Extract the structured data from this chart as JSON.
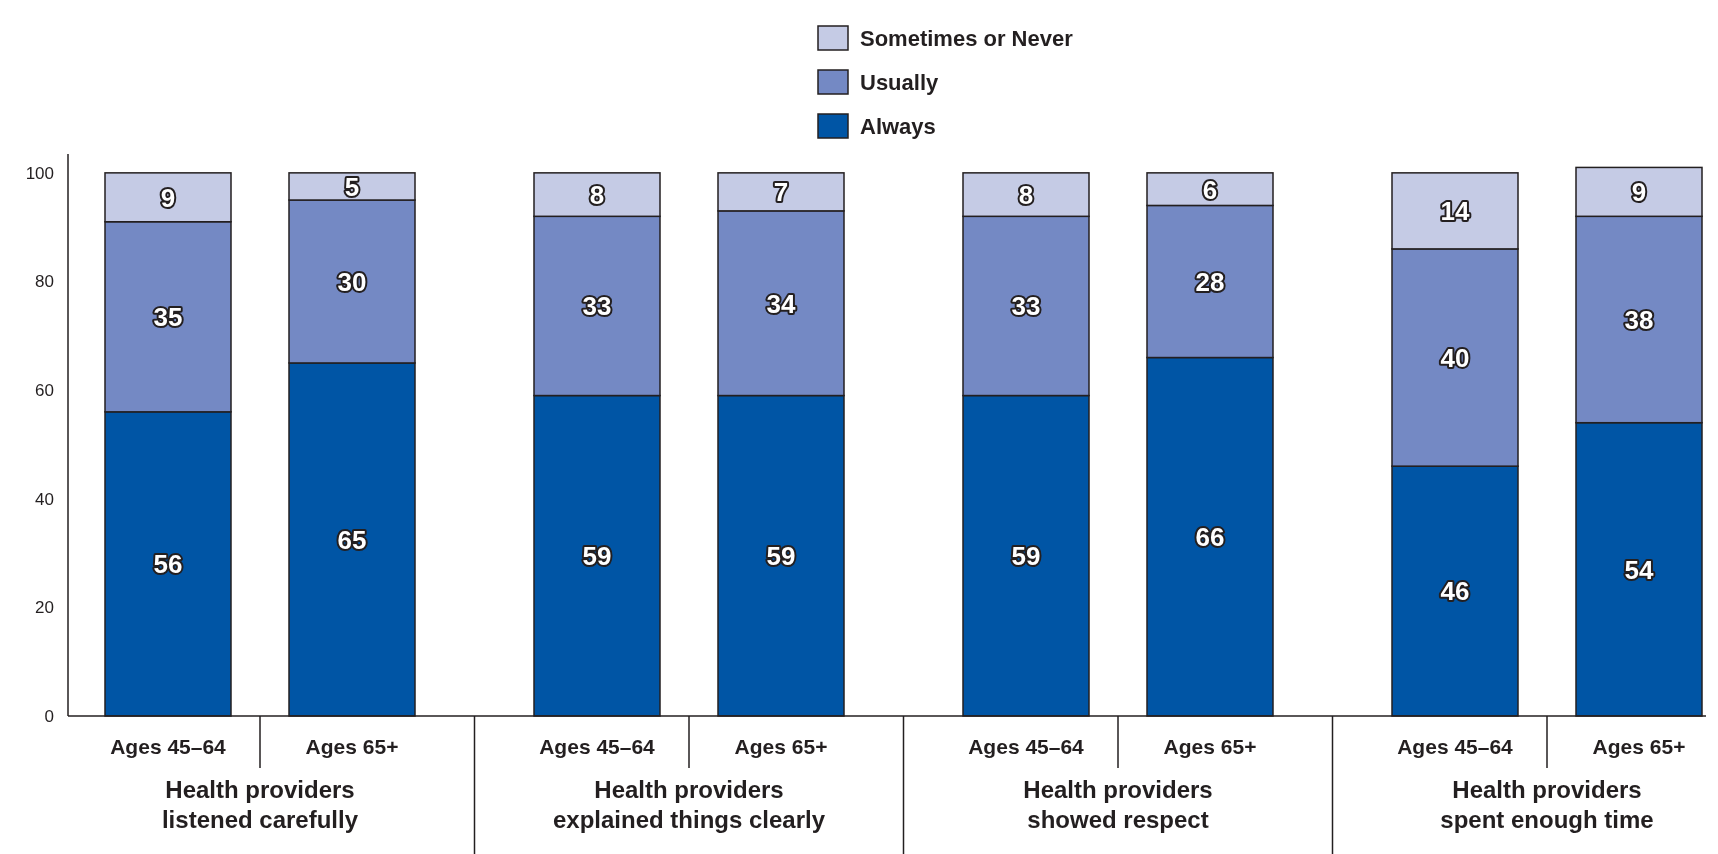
{
  "chart_data": {
    "type": "bar",
    "stacked": true,
    "categories": [
      "Ages 45–64",
      "Ages 65+",
      "Ages 45–64",
      "Ages 65+",
      "Ages 45–64",
      "Ages 65+",
      "Ages 45–64",
      "Ages 65+"
    ],
    "series": [
      {
        "name": "Always",
        "color": "#0055a5",
        "values": [
          56,
          65,
          59,
          59,
          59,
          66,
          46,
          54
        ]
      },
      {
        "name": "Usually",
        "color": "#7489c4",
        "values": [
          35,
          30,
          33,
          34,
          33,
          28,
          40,
          38
        ]
      },
      {
        "name": "Sometimes or Never",
        "color": "#c5cbe5",
        "values": [
          9,
          5,
          8,
          7,
          8,
          6,
          14,
          9
        ]
      }
    ],
    "annotations": [
      "Health providers listened carefully",
      "Health providers explained things clearly",
      "Health providers showed respect",
      "Health providers spent enough time"
    ],
    "ylim": [
      0,
      102
    ],
    "yticks": [
      0,
      20,
      40,
      60,
      80,
      100
    ],
    "grid": false,
    "legend": "top",
    "data_labels": true
  }
}
